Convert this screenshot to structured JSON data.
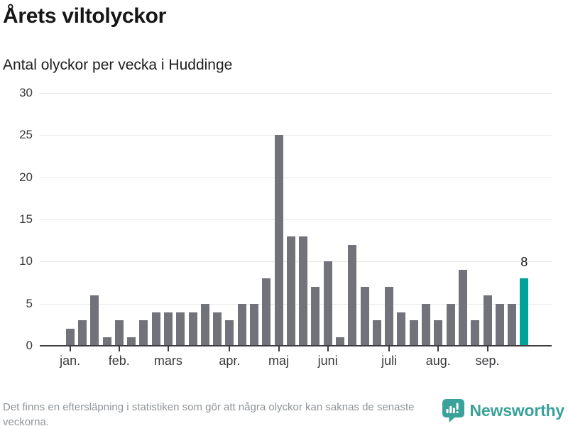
{
  "chart_data": {
    "type": "bar",
    "title": "Årets viltolyckor",
    "subtitle": "Antal olyckor per vecka i Huddinge",
    "values": [
      2,
      3,
      6,
      1,
      3,
      1,
      3,
      4,
      4,
      4,
      4,
      5,
      4,
      3,
      5,
      5,
      8,
      25,
      13,
      13,
      7,
      10,
      1,
      12,
      7,
      3,
      7,
      4,
      3,
      5,
      3,
      5,
      9,
      3,
      6,
      5,
      5,
      8
    ],
    "month_ticks": [
      {
        "label": "jan.",
        "index": 0
      },
      {
        "label": "feb.",
        "index": 4
      },
      {
        "label": "mars",
        "index": 8
      },
      {
        "label": "apr.",
        "index": 13
      },
      {
        "label": "maj",
        "index": 17
      },
      {
        "label": "juni",
        "index": 21
      },
      {
        "label": "juli",
        "index": 26
      },
      {
        "label": "aug.",
        "index": 30
      },
      {
        "label": "sep.",
        "index": 34
      }
    ],
    "yticks": [
      0,
      5,
      10,
      15,
      20,
      25,
      30
    ],
    "ylim": [
      0,
      30
    ],
    "grid": true,
    "legend": false,
    "highlight_index": 37,
    "highlight_value_label": "8",
    "colors": {
      "bar": "#72727a",
      "highlight": "#00a39a",
      "grid": "#e8e8e9",
      "axis": "#3d3d40",
      "tick_labels": "#3a3a3d",
      "value_label": "#1a1a1a"
    }
  },
  "footer": {
    "note": "Det finns en eftersläpning i statistiken som gör att några olyckor kan saknas de senaste veckorna.",
    "brand": "Newsworthy",
    "brand_color": "#3aa29b"
  }
}
